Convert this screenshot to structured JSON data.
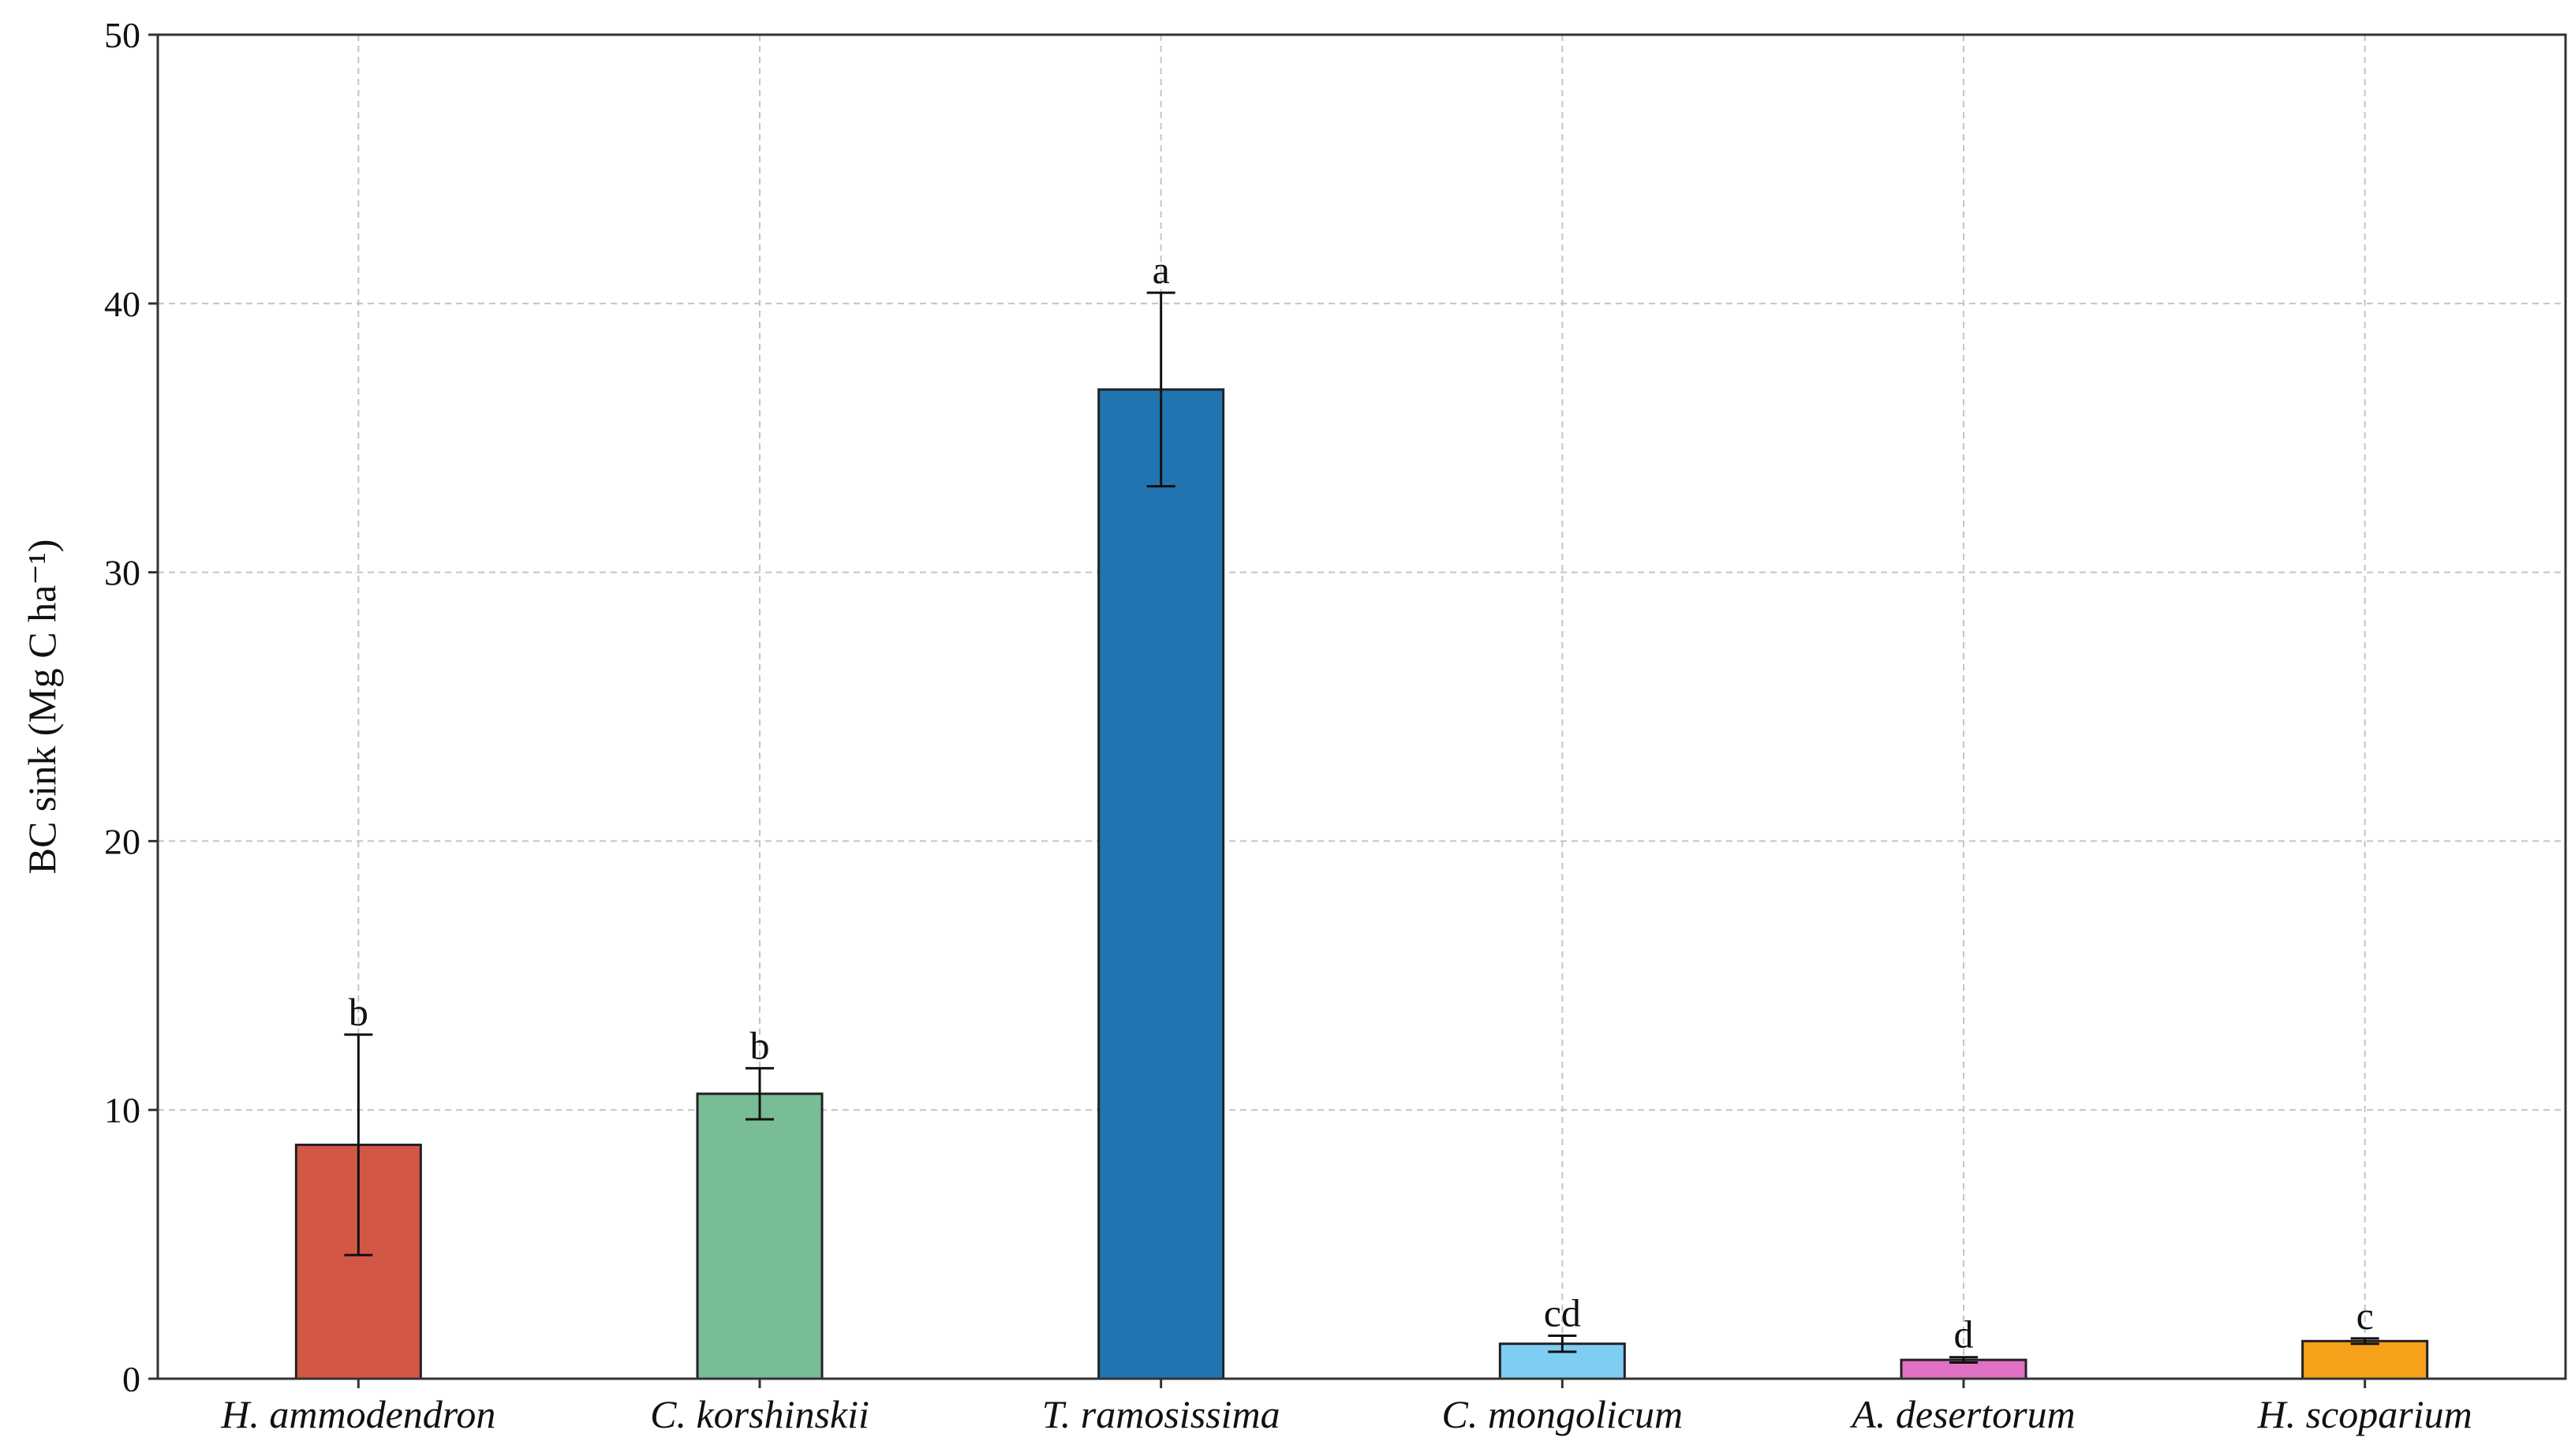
{
  "chart_data": {
    "type": "bar",
    "categories": [
      "H. ammodendron",
      "C. korshinskii",
      "T. ramosissima",
      "C. mongolicum",
      "A. desertorum",
      "H. scoparium"
    ],
    "values": [
      8.7,
      10.6,
      36.8,
      1.3,
      0.7,
      1.4
    ],
    "errors": [
      4.1,
      0.95,
      3.6,
      0.3,
      0.1,
      0.1
    ],
    "significance_labels": [
      "b",
      "b",
      "a",
      "cd",
      "d",
      "c"
    ],
    "colors": [
      "#d35746",
      "#78bd96",
      "#2174b0",
      "#7fcdf2",
      "#e071c5",
      "#f7a11a"
    ],
    "title": "",
    "xlabel": "",
    "ylabel": "BC sink (Mg C ha⁻¹)",
    "ylim": [
      0,
      50
    ],
    "yticks": [
      0,
      10,
      20,
      30,
      40,
      50
    ],
    "grid": true,
    "legend": "none"
  }
}
